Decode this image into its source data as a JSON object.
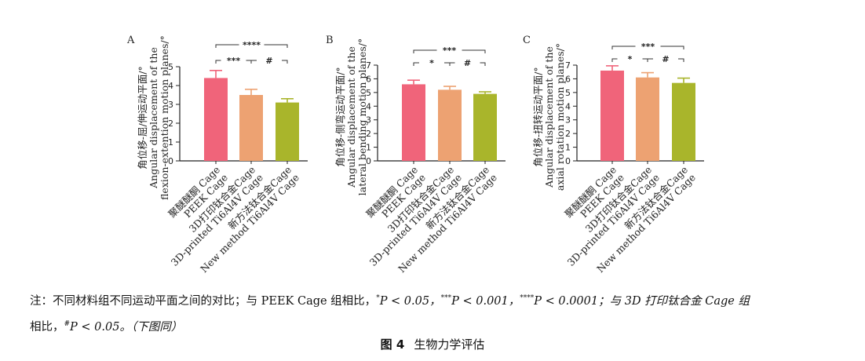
{
  "colors": {
    "peek": "#f0647a",
    "printed": "#eda272",
    "new_method": "#a9b52b",
    "axis": "#222222"
  },
  "categories": [
    "聚醚醚酮 Cage / PEEK Cage",
    "3D打印钛合金Cage / 3D-printed Ti6Al4V Cage",
    "新方法钛合金Cage / New method Ti6Al4V Cage"
  ],
  "x_labels": [
    {
      "cn": "聚醚醚酮 Cage",
      "en": "PEEK Cage"
    },
    {
      "cn": "3D打印钛合金Cage",
      "en": "3D-printed Ti6Al4V Cage"
    },
    {
      "cn": "新方法钛合金Cage",
      "en": "New method Ti6Al4V Cage"
    }
  ],
  "chart_data": [
    {
      "type": "bar",
      "panel": "A",
      "ylabel_cn": "角位移-屈/伸运动平面/°",
      "ylabel_en_1": "Angular displacement of the",
      "ylabel_en_2": "flexion-extention motion planes/°",
      "categories": [
        "PEEK Cage",
        "3D-printed Ti6Al4V Cage",
        "New method Ti6Al4V Cage"
      ],
      "values": [
        4.4,
        3.5,
        3.1
      ],
      "errors": [
        0.4,
        0.3,
        0.2
      ],
      "ylim": [
        0,
        5
      ],
      "yticks": [
        "0",
        "1",
        "2",
        "3",
        "4",
        "5"
      ],
      "significance": [
        {
          "from": 0,
          "to": 1,
          "label": "***"
        },
        {
          "from": 1,
          "to": 2,
          "label": "#"
        },
        {
          "from": 0,
          "to": 2,
          "label": "****"
        }
      ]
    },
    {
      "type": "bar",
      "panel": "B",
      "ylabel_cn": "角位移-侧弯运动平面/°",
      "ylabel_en_1": "Angular displacement of the",
      "ylabel_en_2": "lateral bending motion planes/°",
      "categories": [
        "PEEK Cage",
        "3D-printed Ti6Al4V Cage",
        "New method Ti6Al4V Cage"
      ],
      "values": [
        5.6,
        5.2,
        4.9
      ],
      "errors": [
        0.3,
        0.25,
        0.15
      ],
      "ylim": [
        0,
        7
      ],
      "yticks": [
        "0",
        "1",
        "2",
        "3",
        "4",
        "5",
        "6",
        "7"
      ],
      "significance": [
        {
          "from": 0,
          "to": 1,
          "label": "*"
        },
        {
          "from": 1,
          "to": 2,
          "label": "#"
        },
        {
          "from": 0,
          "to": 2,
          "label": "***"
        }
      ]
    },
    {
      "type": "bar",
      "panel": "C",
      "ylabel_cn": "角位移-扭转运动平面/°",
      "ylabel_en_1": "Angular displacement of the",
      "ylabel_en_2": "axial rotation motion planes/°",
      "categories": [
        "PEEK Cage",
        "3D-printed Ti6Al4V Cage",
        "New method Ti6Al4V Cage"
      ],
      "values": [
        6.6,
        6.1,
        5.7
      ],
      "errors": [
        0.35,
        0.35,
        0.35
      ],
      "ylim": [
        0,
        7
      ],
      "yticks": [
        "0",
        "1",
        "2",
        "3",
        "4",
        "5",
        "6",
        "7"
      ],
      "significance": [
        {
          "from": 0,
          "to": 1,
          "label": "*"
        },
        {
          "from": 1,
          "to": 2,
          "label": "#"
        },
        {
          "from": 0,
          "to": 2,
          "label": "***"
        }
      ]
    }
  ],
  "note": {
    "prefix": "注：不同材料组不同运动平面之间的对比；与 PEEK Cage 组相比，",
    "sym1": "*",
    "p1": "P < 0.05，",
    "sym2": "***",
    "p2": "P < 0.001，",
    "sym3": "****",
    "p3": "P < 0.0001；与 3D 打印钛合金 Cage 组",
    "line2_prefix": "相比，",
    "sym4": "#",
    "p4": "P < 0.05。（下图同）"
  },
  "caption": {
    "number": "图 4",
    "title": "生物力学评估"
  }
}
